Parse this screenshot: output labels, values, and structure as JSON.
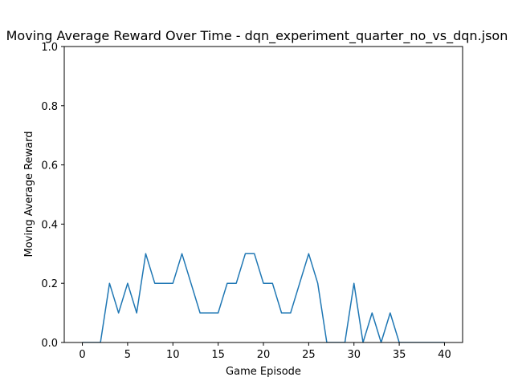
{
  "chart_data": {
    "type": "line",
    "title": "Moving Average Reward Over Time - dqn_experiment_quarter_no_vs_dqn.json",
    "xlabel": "Game Episode",
    "ylabel": "Moving Average Reward",
    "xlim": [
      -2,
      42
    ],
    "ylim": [
      0,
      1
    ],
    "xticks": [
      0,
      5,
      10,
      15,
      20,
      25,
      30,
      35,
      40
    ],
    "xtick_labels": [
      "0",
      "5",
      "10",
      "15",
      "20",
      "25",
      "30",
      "35",
      "40"
    ],
    "yticks": [
      0,
      0.2,
      0.4,
      0.6,
      0.8,
      1.0
    ],
    "ytick_labels": [
      "0.0",
      "0.2",
      "0.4",
      "0.6",
      "0.8",
      "1.0"
    ],
    "grid": false,
    "series": [
      {
        "color": "#1f77b4",
        "x": [
          0,
          1,
          2,
          3,
          4,
          5,
          6,
          7,
          8,
          9,
          10,
          11,
          12,
          13,
          14,
          15,
          16,
          17,
          18,
          19,
          20,
          21,
          22,
          23,
          24,
          25,
          26,
          27,
          28,
          29,
          30,
          31,
          32,
          33,
          34,
          35,
          36,
          37,
          38,
          39,
          40
        ],
        "y": [
          0,
          0,
          0,
          0.2,
          0.1,
          0.2,
          0.1,
          0.3,
          0.2,
          0.2,
          0.2,
          0.3,
          0.2,
          0.1,
          0.1,
          0.1,
          0.2,
          0.2,
          0.3,
          0.3,
          0.2,
          0.2,
          0.1,
          0.1,
          0.2,
          0.3,
          0.2,
          0,
          0,
          0,
          0.2,
          0,
          0.1,
          0,
          0.1,
          0,
          0,
          0,
          0,
          0,
          0
        ]
      }
    ]
  }
}
